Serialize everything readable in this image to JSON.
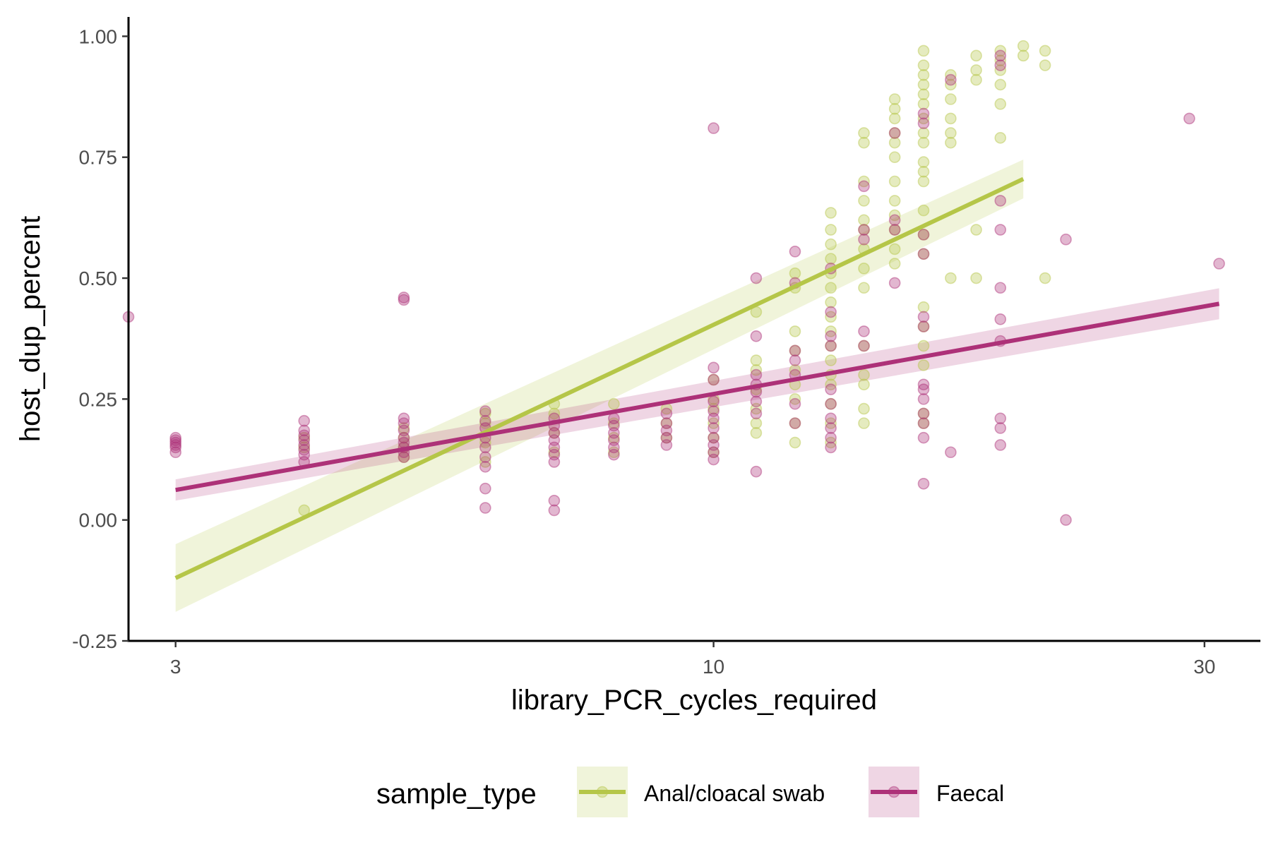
{
  "chart_data": {
    "type": "scatter",
    "title": "",
    "xlabel": "library_PCR_cycles_required",
    "ylabel": "host_dup_percent",
    "x_scale": "log10",
    "xlim": [
      2.7,
      34
    ],
    "ylim": [
      -0.25,
      1.04
    ],
    "x_ticks": [
      3,
      10,
      30
    ],
    "x_tick_labels": [
      "3",
      "10",
      "30"
    ],
    "y_ticks": [
      -0.25,
      0,
      0.25,
      0.5,
      0.75,
      1.0
    ],
    "y_tick_labels": [
      "-0.25",
      "0.00",
      "0.25",
      "0.50",
      "0.75",
      "1.00"
    ],
    "grid": false,
    "legend": {
      "title": "sample_type",
      "position": "bottom"
    },
    "series": [
      {
        "name": "Anal/cloacal swab",
        "color": "#b5c648",
        "fit_line": {
          "x": [
            3,
            20
          ],
          "y": [
            -0.12,
            0.705
          ]
        },
        "ci_band": {
          "x": [
            3,
            20
          ],
          "lower": [
            -0.19,
            0.665
          ],
          "upper": [
            -0.05,
            0.745
          ]
        },
        "points": [
          [
            4,
            0.02
          ],
          [
            4,
            0.15
          ],
          [
            4,
            0.17
          ],
          [
            5,
            0.13
          ],
          [
            5,
            0.15
          ],
          [
            5,
            0.17
          ],
          [
            5,
            0.19
          ],
          [
            6,
            0.12
          ],
          [
            6,
            0.16
          ],
          [
            6,
            0.2
          ],
          [
            6,
            0.22
          ],
          [
            7,
            0.14
          ],
          [
            7,
            0.18
          ],
          [
            7,
            0.22
          ],
          [
            7,
            0.24
          ],
          [
            8,
            0.14
          ],
          [
            8,
            0.17
          ],
          [
            8,
            0.2
          ],
          [
            8,
            0.24
          ],
          [
            9,
            0.17
          ],
          [
            9,
            0.2
          ],
          [
            9,
            0.23
          ],
          [
            10,
            0.14
          ],
          [
            10,
            0.17
          ],
          [
            10,
            0.2
          ],
          [
            10,
            0.23
          ],
          [
            10,
            0.25
          ],
          [
            10,
            0.29
          ],
          [
            11,
            0.18
          ],
          [
            11,
            0.2
          ],
          [
            11,
            0.23
          ],
          [
            11,
            0.27
          ],
          [
            11,
            0.31
          ],
          [
            11,
            0.33
          ],
          [
            11,
            0.43
          ],
          [
            12,
            0.16
          ],
          [
            12,
            0.2
          ],
          [
            12,
            0.25
          ],
          [
            12,
            0.28
          ],
          [
            12,
            0.31
          ],
          [
            12,
            0.35
          ],
          [
            12,
            0.39
          ],
          [
            12,
            0.48
          ],
          [
            12,
            0.51
          ],
          [
            13,
            0.16
          ],
          [
            13,
            0.2
          ],
          [
            13,
            0.24
          ],
          [
            13,
            0.28
          ],
          [
            13,
            0.3
          ],
          [
            13,
            0.33
          ],
          [
            13,
            0.36
          ],
          [
            13,
            0.39
          ],
          [
            13,
            0.42
          ],
          [
            13,
            0.45
          ],
          [
            13,
            0.48
          ],
          [
            13,
            0.51
          ],
          [
            13,
            0.54
          ],
          [
            13,
            0.57
          ],
          [
            13,
            0.6
          ],
          [
            13,
            0.635
          ],
          [
            14,
            0.2
          ],
          [
            14,
            0.23
          ],
          [
            14,
            0.28
          ],
          [
            14,
            0.3
          ],
          [
            14,
            0.36
          ],
          [
            14,
            0.48
          ],
          [
            14,
            0.52
          ],
          [
            14,
            0.56
          ],
          [
            14,
            0.6
          ],
          [
            14,
            0.62
          ],
          [
            14,
            0.66
          ],
          [
            14,
            0.7
          ],
          [
            14,
            0.78
          ],
          [
            14,
            0.8
          ],
          [
            15,
            0.53
          ],
          [
            15,
            0.56
          ],
          [
            15,
            0.6
          ],
          [
            15,
            0.63
          ],
          [
            15,
            0.66
          ],
          [
            15,
            0.7
          ],
          [
            15,
            0.75
          ],
          [
            15,
            0.78
          ],
          [
            15,
            0.8
          ],
          [
            15,
            0.83
          ],
          [
            15,
            0.85
          ],
          [
            15,
            0.87
          ],
          [
            16,
            0.2
          ],
          [
            16,
            0.22
          ],
          [
            16,
            0.32
          ],
          [
            16,
            0.36
          ],
          [
            16,
            0.4
          ],
          [
            16,
            0.44
          ],
          [
            16,
            0.55
          ],
          [
            16,
            0.59
          ],
          [
            16,
            0.64
          ],
          [
            16,
            0.7
          ],
          [
            16,
            0.72
          ],
          [
            16,
            0.74
          ],
          [
            16,
            0.78
          ],
          [
            16,
            0.8
          ],
          [
            16,
            0.83
          ],
          [
            16,
            0.86
          ],
          [
            16,
            0.88
          ],
          [
            16,
            0.9
          ],
          [
            16,
            0.92
          ],
          [
            16,
            0.94
          ],
          [
            16,
            0.97
          ],
          [
            17,
            0.5
          ],
          [
            17,
            0.78
          ],
          [
            17,
            0.8
          ],
          [
            17,
            0.83
          ],
          [
            17,
            0.87
          ],
          [
            17,
            0.9
          ],
          [
            17,
            0.92
          ],
          [
            18,
            0.5
          ],
          [
            18,
            0.6
          ],
          [
            18,
            0.91
          ],
          [
            18,
            0.93
          ],
          [
            18,
            0.96
          ],
          [
            19,
            0.79
          ],
          [
            19,
            0.86
          ],
          [
            19,
            0.9
          ],
          [
            19,
            0.93
          ],
          [
            19,
            0.95
          ],
          [
            19,
            0.97
          ],
          [
            20,
            0.96
          ],
          [
            20,
            0.98
          ],
          [
            21,
            0.5
          ],
          [
            21,
            0.94
          ],
          [
            21,
            0.97
          ]
        ]
      },
      {
        "name": "Faecal",
        "color": "#ad3178",
        "fit_line": {
          "x": [
            3,
            31
          ],
          "y": [
            0.062,
            0.447
          ]
        },
        "ci_band": {
          "x": [
            3,
            31
          ],
          "lower": [
            0.04,
            0.415
          ],
          "upper": [
            0.084,
            0.479
          ]
        },
        "points": [
          [
            2.7,
            0.42
          ],
          [
            3,
            0.14
          ],
          [
            3,
            0.15
          ],
          [
            3,
            0.155
          ],
          [
            3,
            0.16
          ],
          [
            3,
            0.165
          ],
          [
            3,
            0.17
          ],
          [
            4,
            0.12
          ],
          [
            4,
            0.135
          ],
          [
            4,
            0.145
          ],
          [
            4,
            0.155
          ],
          [
            4,
            0.165
          ],
          [
            4,
            0.175
          ],
          [
            4,
            0.185
          ],
          [
            4,
            0.205
          ],
          [
            5,
            0.13
          ],
          [
            5,
            0.14
          ],
          [
            5,
            0.15
          ],
          [
            5,
            0.16
          ],
          [
            5,
            0.17
          ],
          [
            5,
            0.185
          ],
          [
            5,
            0.2
          ],
          [
            5,
            0.21
          ],
          [
            5,
            0.455
          ],
          [
            5,
            0.46
          ],
          [
            6,
            0.025
          ],
          [
            6,
            0.065
          ],
          [
            6,
            0.11
          ],
          [
            6,
            0.13
          ],
          [
            6,
            0.15
          ],
          [
            6,
            0.17
          ],
          [
            6,
            0.19
          ],
          [
            6,
            0.205
          ],
          [
            6,
            0.225
          ],
          [
            7,
            0.02
          ],
          [
            7,
            0.04
          ],
          [
            7,
            0.12
          ],
          [
            7,
            0.135
          ],
          [
            7,
            0.15
          ],
          [
            7,
            0.165
          ],
          [
            7,
            0.18
          ],
          [
            7,
            0.195
          ],
          [
            7,
            0.21
          ],
          [
            8,
            0.135
          ],
          [
            8,
            0.15
          ],
          [
            8,
            0.165
          ],
          [
            8,
            0.18
          ],
          [
            8,
            0.195
          ],
          [
            8,
            0.21
          ],
          [
            9,
            0.155
          ],
          [
            9,
            0.17
          ],
          [
            9,
            0.185
          ],
          [
            9,
            0.2
          ],
          [
            9,
            0.22
          ],
          [
            10,
            0.125
          ],
          [
            10,
            0.14
          ],
          [
            10,
            0.155
          ],
          [
            10,
            0.17
          ],
          [
            10,
            0.19
          ],
          [
            10,
            0.21
          ],
          [
            10,
            0.225
          ],
          [
            10,
            0.245
          ],
          [
            10,
            0.29
          ],
          [
            10,
            0.315
          ],
          [
            10,
            0.81
          ],
          [
            11,
            0.1
          ],
          [
            11,
            0.22
          ],
          [
            11,
            0.245
          ],
          [
            11,
            0.265
          ],
          [
            11,
            0.28
          ],
          [
            11,
            0.3
          ],
          [
            11,
            0.38
          ],
          [
            11,
            0.5
          ],
          [
            12,
            0.2
          ],
          [
            12,
            0.24
          ],
          [
            12,
            0.3
          ],
          [
            12,
            0.33
          ],
          [
            12,
            0.35
          ],
          [
            12,
            0.49
          ],
          [
            12,
            0.555
          ],
          [
            13,
            0.15
          ],
          [
            13,
            0.17
          ],
          [
            13,
            0.19
          ],
          [
            13,
            0.21
          ],
          [
            13,
            0.24
          ],
          [
            13,
            0.27
          ],
          [
            13,
            0.36
          ],
          [
            13,
            0.38
          ],
          [
            13,
            0.43
          ],
          [
            13,
            0.52
          ],
          [
            14,
            0.36
          ],
          [
            14,
            0.39
          ],
          [
            14,
            0.58
          ],
          [
            14,
            0.6
          ],
          [
            14,
            0.69
          ],
          [
            15,
            0.49
          ],
          [
            15,
            0.6
          ],
          [
            15,
            0.62
          ],
          [
            15,
            0.8
          ],
          [
            16,
            0.075
          ],
          [
            16,
            0.17
          ],
          [
            16,
            0.2
          ],
          [
            16,
            0.22
          ],
          [
            16,
            0.25
          ],
          [
            16,
            0.27
          ],
          [
            16,
            0.28
          ],
          [
            16,
            0.4
          ],
          [
            16,
            0.42
          ],
          [
            16,
            0.55
          ],
          [
            16,
            0.59
          ],
          [
            16,
            0.82
          ],
          [
            16,
            0.84
          ],
          [
            17,
            0.14
          ],
          [
            17,
            0.91
          ],
          [
            19,
            0.155
          ],
          [
            19,
            0.19
          ],
          [
            19,
            0.21
          ],
          [
            19,
            0.37
          ],
          [
            19,
            0.415
          ],
          [
            19,
            0.48
          ],
          [
            19,
            0.6
          ],
          [
            19,
            0.66
          ],
          [
            19,
            0.94
          ],
          [
            19,
            0.96
          ],
          [
            22,
            0.0
          ],
          [
            22,
            0.58
          ],
          [
            29,
            0.83
          ],
          [
            31,
            0.53
          ]
        ]
      }
    ]
  }
}
